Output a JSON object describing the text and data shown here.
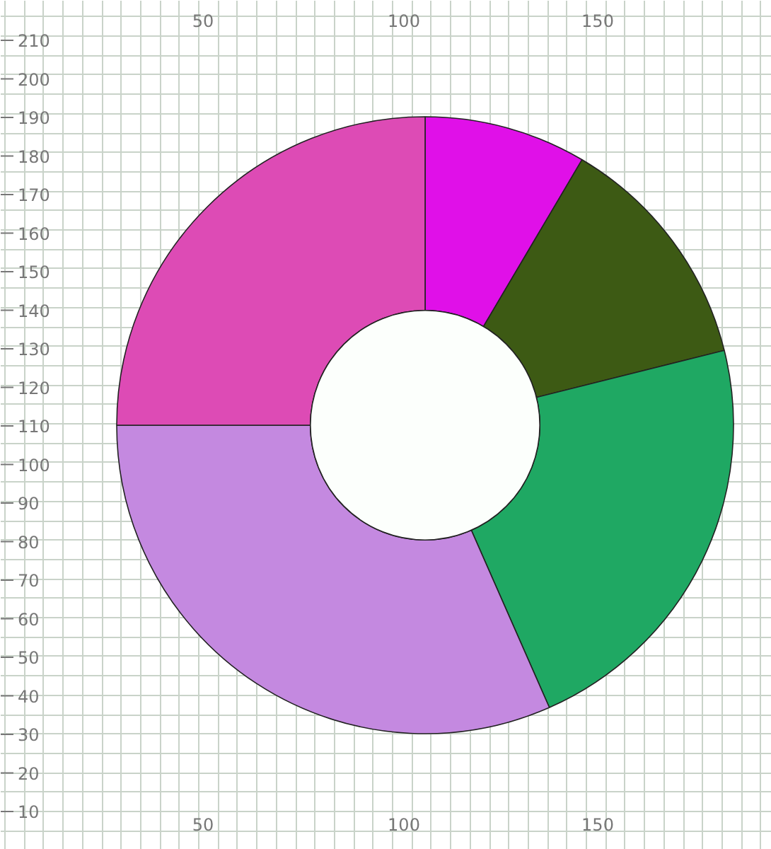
{
  "chart_data": {
    "type": "donut",
    "categories": [
      null,
      null,
      null,
      null,
      null
    ],
    "values": [
      8.5,
      12.6,
      22.3,
      31.6,
      25
    ],
    "colors": [
      "#e010e8",
      "#3d5a14",
      "#1fa863",
      "#c489e0",
      "#dd4bb5"
    ],
    "annotations": [
      "50",
      "100",
      "150",
      "50",
      "100",
      "150",
      "10",
      "20",
      "30",
      "40",
      "50",
      "60",
      "70",
      "80",
      "90",
      "100",
      "110",
      "120",
      "130",
      "140",
      "150",
      "160",
      "170",
      "180",
      "190",
      "200",
      "210"
    ],
    "grid": true
  }
}
